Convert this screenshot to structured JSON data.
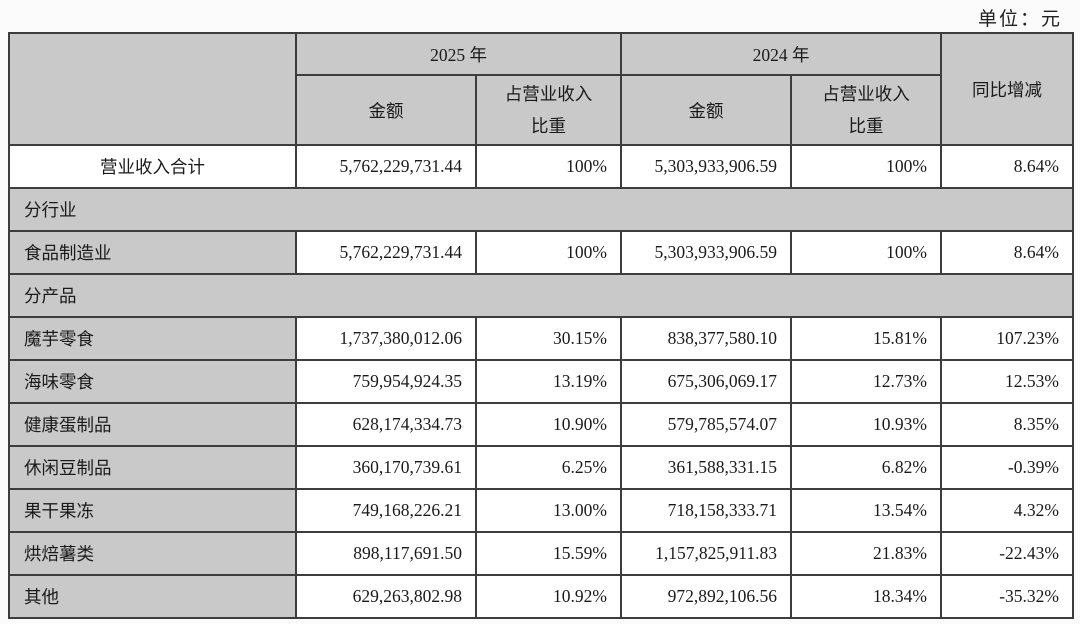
{
  "unit_label": "单位：元",
  "header": {
    "col_group_2025": "2025 年",
    "col_group_2024": "2024 年",
    "amount": "金额",
    "ratio": "占营业收入\n比重",
    "yoy": "同比增减"
  },
  "colors": {
    "cell_gray": "#c9c9c9",
    "cell_white": "#ffffff",
    "border": "#3d3d3d"
  },
  "rows": [
    {
      "type": "total",
      "label": "营业收入合计",
      "cells": [
        "5,762,229,731.44",
        "100%",
        "5,303,933,906.59",
        "100%",
        "8.64%"
      ]
    },
    {
      "type": "section",
      "label": "分行业"
    },
    {
      "type": "data",
      "label": "食品制造业",
      "cells": [
        "5,762,229,731.44",
        "100%",
        "5,303,933,906.59",
        "100%",
        "8.64%"
      ]
    },
    {
      "type": "section",
      "label": "分产品"
    },
    {
      "type": "data",
      "label": "魔芋零食",
      "cells": [
        "1,737,380,012.06",
        "30.15%",
        "838,377,580.10",
        "15.81%",
        "107.23%"
      ]
    },
    {
      "type": "data",
      "label": "海味零食",
      "cells": [
        "759,954,924.35",
        "13.19%",
        "675,306,069.17",
        "12.73%",
        "12.53%"
      ]
    },
    {
      "type": "data",
      "label": "健康蛋制品",
      "cells": [
        "628,174,334.73",
        "10.90%",
        "579,785,574.07",
        "10.93%",
        "8.35%"
      ]
    },
    {
      "type": "data",
      "label": "休闲豆制品",
      "cells": [
        "360,170,739.61",
        "6.25%",
        "361,588,331.15",
        "6.82%",
        "-0.39%"
      ]
    },
    {
      "type": "data",
      "label": "果干果冻",
      "cells": [
        "749,168,226.21",
        "13.00%",
        "718,158,333.71",
        "13.54%",
        "4.32%"
      ]
    },
    {
      "type": "data",
      "label": "烘焙薯类",
      "cells": [
        "898,117,691.50",
        "15.59%",
        "1,157,825,911.83",
        "21.83%",
        "-22.43%"
      ]
    },
    {
      "type": "data",
      "label": "其他",
      "cells": [
        "629,263,802.98",
        "10.92%",
        "972,892,106.56",
        "18.34%",
        "-35.32%"
      ]
    }
  ]
}
